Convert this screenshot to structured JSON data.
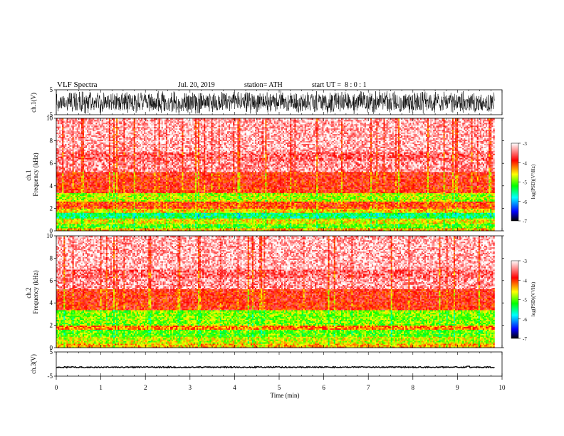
{
  "header": {
    "title": "VLF Spectra",
    "date": "Jul. 20, 2019",
    "station": "station= ATH",
    "start": "start UT =  8 : 0 : 1"
  },
  "chart_data": [
    {
      "type": "line",
      "name": "waveform-ch1",
      "ylabel": "ch.1(V)",
      "ylim": [
        -5,
        5
      ],
      "yticks": [
        "5",
        "-5"
      ],
      "xlim": [
        0,
        10
      ],
      "x_extent": [
        0,
        9.83
      ],
      "approx_envelope": [
        -4.8,
        4.8
      ]
    },
    {
      "type": "heatmap",
      "name": "spectrogram-ch1",
      "ylabel": "ch.1\nFrequency (kHz)",
      "ylim": [
        0,
        10
      ],
      "yticks": [
        "0",
        "2",
        "4",
        "6",
        "8",
        "10"
      ],
      "xlim": [
        0,
        10
      ],
      "x_extent": [
        0,
        9.83
      ],
      "colorbar": {
        "label": "log(PSD)(V²/Hz)",
        "range": [
          -7,
          -3
        ],
        "ticks": [
          "-3",
          "-4",
          "-5",
          "-6",
          "-7"
        ],
        "stops": [
          "#000000",
          "#0000ff",
          "#00ffff",
          "#00ff00",
          "#ffff00",
          "#ff0000",
          "#ffffff"
        ]
      },
      "bands_log_psd": [
        {
          "f": [
            0.0,
            0.3
          ],
          "level": -4.4
        },
        {
          "f": [
            0.3,
            0.6
          ],
          "level": -5.0
        },
        {
          "f": [
            0.6,
            1.1
          ],
          "level": -4.6
        },
        {
          "f": [
            1.1,
            1.6
          ],
          "level": -5.4
        },
        {
          "f": [
            1.6,
            2.0
          ],
          "level": -4.5
        },
        {
          "f": [
            2.0,
            2.6
          ],
          "level": -4.0
        },
        {
          "f": [
            2.6,
            3.4
          ],
          "level": -4.75
        },
        {
          "f": [
            3.4,
            4.0
          ],
          "level": -3.9
        },
        {
          "f": [
            4.0,
            5.2
          ],
          "level": -3.85
        },
        {
          "f": [
            5.2,
            6.2
          ],
          "level": -3.35
        },
        {
          "f": [
            6.2,
            7.0
          ],
          "level": -3.5
        },
        {
          "f": [
            7.0,
            10.0
          ],
          "level": -3.25
        }
      ]
    },
    {
      "type": "heatmap",
      "name": "spectrogram-ch2",
      "ylabel": "ch.2\nFrequency (kHz)",
      "ylim": [
        0,
        10
      ],
      "yticks": [
        "0",
        "2",
        "4",
        "6",
        "8",
        "10"
      ],
      "xlim": [
        0,
        10
      ],
      "x_extent": [
        0,
        9.83
      ],
      "colorbar": {
        "label": "log(PSD)(V²/Hz)",
        "range": [
          -7,
          -3
        ],
        "ticks": [
          "-3",
          "-4",
          "-5",
          "-6",
          "-7"
        ],
        "stops": [
          "#000000",
          "#0000ff",
          "#00ffff",
          "#00ff00",
          "#ffff00",
          "#ff0000",
          "#ffffff"
        ]
      },
      "bands_log_psd": [
        {
          "f": [
            0.0,
            0.4
          ],
          "level": -4.4
        },
        {
          "f": [
            0.4,
            1.0
          ],
          "level": -4.7
        },
        {
          "f": [
            1.0,
            1.6
          ],
          "level": -5.0
        },
        {
          "f": [
            1.6,
            2.0
          ],
          "level": -4.2
        },
        {
          "f": [
            2.0,
            3.4
          ],
          "level": -4.9
        },
        {
          "f": [
            3.4,
            4.0
          ],
          "level": -3.9
        },
        {
          "f": [
            4.0,
            5.2
          ],
          "level": -3.85
        },
        {
          "f": [
            5.2,
            6.2
          ],
          "level": -3.35
        },
        {
          "f": [
            6.2,
            7.0
          ],
          "level": -3.5
        },
        {
          "f": [
            7.0,
            10.0
          ],
          "level": -3.25
        }
      ]
    },
    {
      "type": "line",
      "name": "waveform-ch3",
      "ylabel": "ch.3(V)",
      "ylim": [
        -5,
        5
      ],
      "yticks": [
        "5",
        "-5"
      ],
      "xlim": [
        0,
        10
      ],
      "x_extent": [
        0,
        9.83
      ],
      "approx_level": -1.3,
      "xlabel": "Time (min)",
      "xticks": [
        "0",
        "1",
        "2",
        "3",
        "4",
        "5",
        "6",
        "7",
        "8",
        "9",
        "10"
      ]
    }
  ]
}
